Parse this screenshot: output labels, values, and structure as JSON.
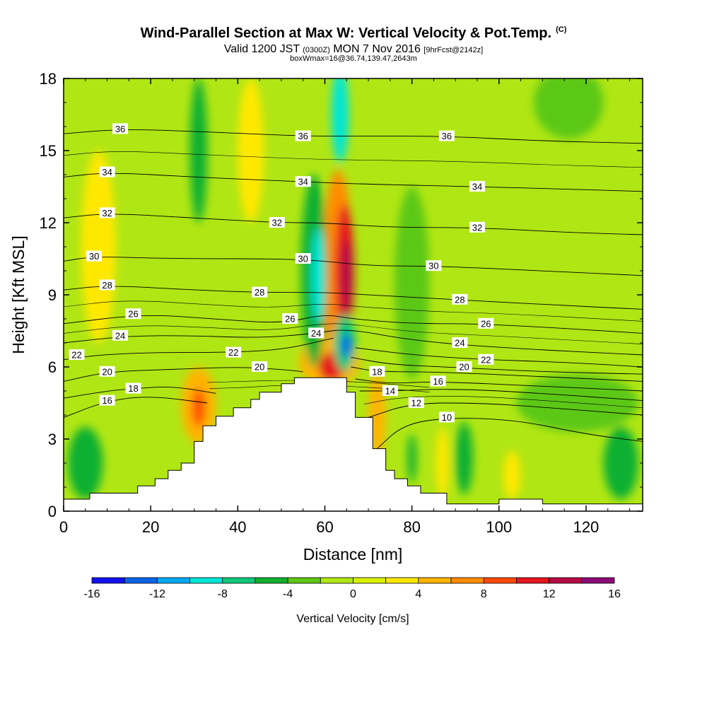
{
  "header": {
    "title": "Wind-Parallel Section at Max W: Vertical Velocity & Pot.Temp.",
    "copyright": "(C)",
    "valid_a": "Valid 1200 JST ",
    "valid_b": "(0300Z)",
    "valid_c": " MON 7 Nov 2016 ",
    "valid_d": "[9hrFcst@2142z]",
    "box": "boxWmax=16@36.74,139.47,2643m"
  },
  "chart_data": {
    "type": "heatmap",
    "xlabel": "Distance [nm]",
    "ylabel": "Height [Kft MSL]",
    "xlim": [
      0,
      133
    ],
    "ylim": [
      0,
      18
    ],
    "x_ticks": [
      0,
      20,
      40,
      60,
      80,
      100,
      120
    ],
    "y_ticks": [
      0,
      3,
      6,
      9,
      12,
      15,
      18
    ],
    "colorbar": {
      "label": "Vertical Velocity [cm/s]",
      "ticks": [
        -16,
        -12,
        -8,
        -4,
        0,
        4,
        8,
        12,
        16
      ],
      "levels": [
        -16,
        -14,
        -12,
        -10,
        -8,
        -6,
        -4,
        -2,
        0,
        2,
        4,
        6,
        8,
        10,
        12,
        14,
        16
      ],
      "colors": [
        "#1010f0",
        "#0a64e6",
        "#00a8f0",
        "#00e6d6",
        "#10c87a",
        "#10b030",
        "#5cc814",
        "#b0e614",
        "#d8f000",
        "#ffe800",
        "#ffb400",
        "#ff8c00",
        "#ff4a00",
        "#e6141e",
        "#b40a46",
        "#8c0a78"
      ]
    },
    "background_color": "#b0e614",
    "terrain": [
      [
        0,
        0.5
      ],
      [
        6,
        0.5
      ],
      [
        6,
        0.75
      ],
      [
        17,
        0.75
      ],
      [
        17,
        1.05
      ],
      [
        21,
        1.05
      ],
      [
        21,
        1.35
      ],
      [
        24,
        1.35
      ],
      [
        24,
        1.7
      ],
      [
        27,
        1.7
      ],
      [
        27,
        2.0
      ],
      [
        30,
        2.0
      ],
      [
        30,
        2.9
      ],
      [
        32,
        2.9
      ],
      [
        32,
        3.55
      ],
      [
        35,
        3.55
      ],
      [
        35,
        3.95
      ],
      [
        39,
        3.95
      ],
      [
        39,
        4.3
      ],
      [
        43,
        4.3
      ],
      [
        43,
        4.65
      ],
      [
        45,
        4.65
      ],
      [
        45,
        4.95
      ],
      [
        50,
        4.95
      ],
      [
        50,
        5.3
      ],
      [
        53,
        5.3
      ],
      [
        53,
        5.55
      ],
      [
        65,
        5.55
      ],
      [
        65,
        4.95
      ],
      [
        67,
        4.95
      ],
      [
        67,
        3.9
      ],
      [
        71,
        3.9
      ],
      [
        71,
        2.6
      ],
      [
        74,
        2.6
      ],
      [
        74,
        1.7
      ],
      [
        76,
        1.7
      ],
      [
        76,
        1.35
      ],
      [
        79,
        1.35
      ],
      [
        79,
        1.05
      ],
      [
        82,
        1.05
      ],
      [
        82,
        0.75
      ],
      [
        88,
        0.75
      ],
      [
        88,
        0.3
      ],
      [
        100,
        0.3
      ],
      [
        100,
        0.5
      ],
      [
        110,
        0.5
      ],
      [
        110,
        0.3
      ],
      [
        133,
        0.3
      ]
    ],
    "anomalies": [
      {
        "x": 63,
        "y": 10,
        "rx": 3.5,
        "ry": 4.2,
        "value": 6
      },
      {
        "x": 64.5,
        "y": 10,
        "rx": 2.2,
        "ry": 2.8,
        "value": 10
      },
      {
        "x": 65,
        "y": 9.7,
        "rx": 1.3,
        "ry": 1.6,
        "value": 13
      },
      {
        "x": 61,
        "y": 6.2,
        "rx": 7,
        "ry": 1.0,
        "value": 5
      },
      {
        "x": 61.5,
        "y": 6.0,
        "rx": 3,
        "ry": 0.6,
        "value": 11
      },
      {
        "x": 57.5,
        "y": 10,
        "rx": 3,
        "ry": 4,
        "value": -6
      },
      {
        "x": 58.5,
        "y": 9.8,
        "rx": 1.5,
        "ry": 2,
        "value": -9
      },
      {
        "x": 64.5,
        "y": 7.0,
        "rx": 2.5,
        "ry": 1.2,
        "value": -8
      },
      {
        "x": 65,
        "y": 6.9,
        "rx": 1.2,
        "ry": 0.5,
        "value": -14
      },
      {
        "x": 63.5,
        "y": 16.5,
        "rx": 2,
        "ry": 2,
        "value": -9
      },
      {
        "x": 31,
        "y": 4.4,
        "rx": 4,
        "ry": 1.6,
        "value": 5
      },
      {
        "x": 31,
        "y": 4.3,
        "rx": 1.5,
        "ry": 0.8,
        "value": 9
      },
      {
        "x": 72,
        "y": 4.0,
        "rx": 2,
        "ry": 1.8,
        "value": 5
      },
      {
        "x": 43,
        "y": 15,
        "rx": 3,
        "ry": 3,
        "value": 3
      },
      {
        "x": 31,
        "y": 15,
        "rx": 2,
        "ry": 3,
        "value": -5
      },
      {
        "x": 8,
        "y": 11,
        "rx": 4,
        "ry": 4,
        "value": 3
      },
      {
        "x": 87,
        "y": 2.0,
        "rx": 1.5,
        "ry": 1.5,
        "value": 3
      },
      {
        "x": 103,
        "y": 1.5,
        "rx": 2,
        "ry": 1,
        "value": 3
      },
      {
        "x": 92,
        "y": 2.2,
        "rx": 2,
        "ry": 1.5,
        "value": -5
      },
      {
        "x": 80,
        "y": 2.2,
        "rx": 1,
        "ry": 1,
        "value": -5
      },
      {
        "x": 5,
        "y": 2.0,
        "rx": 4,
        "ry": 1.5,
        "value": -5
      },
      {
        "x": 128,
        "y": 2.0,
        "rx": 4,
        "ry": 1.5,
        "value": -5
      },
      {
        "x": 118,
        "y": 4.5,
        "rx": 14,
        "ry": 1.2,
        "value": -3
      },
      {
        "x": 116,
        "y": 17,
        "rx": 8,
        "ry": 1.5,
        "value": -3
      },
      {
        "x": 80,
        "y": 9.5,
        "rx": 4,
        "ry": 4,
        "value": -3
      }
    ],
    "isentropes": [
      {
        "value": 10,
        "pts": [
          [
            72,
            2.6
          ],
          [
            78,
            3.6
          ],
          [
            88,
            3.9
          ],
          [
            104,
            3.8
          ],
          [
            120,
            3.2
          ],
          [
            133,
            2.9
          ]
        ],
        "label_at": [
          88,
          3.9
        ]
      },
      {
        "value": 12,
        "pts": [
          [
            70,
            3.9
          ],
          [
            80,
            4.5
          ],
          [
            96,
            4.5
          ],
          [
            112,
            4.3
          ],
          [
            133,
            4.0
          ]
        ],
        "label_at": [
          81,
          4.5
        ]
      },
      {
        "value": 14,
        "pts": [
          [
            68,
            5.0
          ],
          [
            75,
            5.0
          ],
          [
            90,
            5.1
          ],
          [
            110,
            4.9
          ],
          [
            133,
            4.6
          ]
        ],
        "label_at": [
          75,
          5.0
        ]
      },
      {
        "value": 16,
        "pts": [
          [
            0,
            3.9
          ],
          [
            10,
            4.6
          ],
          [
            20,
            4.8
          ],
          [
            33,
            4.5
          ]
        ],
        "label_at": [
          10,
          4.6
        ]
      },
      {
        "value": 16,
        "pts": [
          [
            67,
            5.5
          ],
          [
            75,
            5.3
          ],
          [
            85,
            5.4
          ],
          [
            110,
            5.2
          ],
          [
            133,
            5.0
          ]
        ],
        "label_at": [
          86,
          5.4
        ]
      },
      {
        "value": 18,
        "pts": [
          [
            0,
            4.7
          ],
          [
            10,
            5.0
          ],
          [
            16,
            5.1
          ],
          [
            25,
            5.2
          ],
          [
            35,
            4.9
          ]
        ],
        "label_at": [
          16,
          5.1
        ]
      },
      {
        "value": 18,
        "pts": [
          [
            66,
            6.0
          ],
          [
            72,
            5.8
          ],
          [
            85,
            5.8
          ],
          [
            110,
            5.6
          ],
          [
            133,
            5.4
          ]
        ],
        "label_at": [
          72,
          5.8
        ]
      },
      {
        "value": 20,
        "pts": [
          [
            0,
            5.4
          ],
          [
            10,
            5.8
          ],
          [
            25,
            5.9
          ],
          [
            40,
            6.0
          ],
          [
            50,
            5.9
          ],
          [
            55,
            5.8
          ]
        ],
        "label_at": [
          10,
          5.8
        ]
      },
      {
        "value": 20,
        "pts": [
          [
            66,
            6.4
          ],
          [
            75,
            6.1
          ],
          [
            88,
            6.0
          ],
          [
            110,
            5.8
          ],
          [
            133,
            5.7
          ]
        ],
        "label_at": [
          92,
          6.0
        ]
      },
      {
        "value": 22,
        "pts": [
          [
            0,
            6.3
          ],
          [
            8,
            6.5
          ],
          [
            20,
            6.6
          ],
          [
            36,
            6.6
          ],
          [
            50,
            6.7
          ],
          [
            62,
            7.2
          ]
        ],
        "label_at": [
          3,
          6.5
        ]
      },
      {
        "value": 22,
        "pts": [
          [
            67,
            6.8
          ],
          [
            80,
            6.5
          ],
          [
            97,
            6.3
          ],
          [
            115,
            6.2
          ],
          [
            133,
            6.0
          ]
        ],
        "label_at": [
          97,
          6.3
        ]
      },
      {
        "value": 24,
        "pts": [
          [
            0,
            7.0
          ],
          [
            15,
            7.3
          ],
          [
            30,
            7.3
          ],
          [
            45,
            7.2
          ],
          [
            58,
            7.4
          ],
          [
            65,
            7.6
          ],
          [
            80,
            7.1
          ],
          [
            100,
            6.8
          ],
          [
            133,
            6.5
          ]
        ],
        "label_at": [
          13,
          7.3
        ]
      },
      {
        "value": 26,
        "pts": [
          [
            0,
            7.8
          ],
          [
            18,
            8.2
          ],
          [
            35,
            8.0
          ],
          [
            50,
            7.8
          ],
          [
            60,
            8.2
          ],
          [
            66,
            8.0
          ],
          [
            80,
            7.8
          ],
          [
            97,
            7.8
          ],
          [
            133,
            7.4
          ]
        ],
        "label_at": [
          16,
          8.2
        ]
      },
      {
        "value": 28,
        "pts": [
          [
            0,
            9.2
          ],
          [
            10,
            9.4
          ],
          [
            30,
            9.2
          ],
          [
            45,
            9.1
          ],
          [
            60,
            9.1
          ],
          [
            70,
            9.0
          ],
          [
            90,
            8.8
          ],
          [
            110,
            8.6
          ],
          [
            133,
            8.4
          ]
        ],
        "label_at": [
          10,
          9.4
        ]
      },
      {
        "value": 30,
        "pts": [
          [
            0,
            10.4
          ],
          [
            7,
            10.6
          ],
          [
            25,
            10.5
          ],
          [
            55,
            10.5
          ],
          [
            70,
            10.2
          ],
          [
            85,
            10.2
          ],
          [
            110,
            10.0
          ],
          [
            133,
            9.8
          ]
        ],
        "label_at": [
          7,
          10.6
        ]
      },
      {
        "value": 32,
        "pts": [
          [
            0,
            12.2
          ],
          [
            10,
            12.4
          ],
          [
            30,
            12.2
          ],
          [
            49,
            12.0
          ],
          [
            60,
            12.0
          ],
          [
            75,
            11.8
          ],
          [
            95,
            11.8
          ],
          [
            115,
            11.6
          ],
          [
            133,
            11.5
          ]
        ],
        "label_at": [
          10,
          12.4
        ]
      },
      {
        "value": 34,
        "pts": [
          [
            0,
            13.9
          ],
          [
            10,
            14.1
          ],
          [
            30,
            13.9
          ],
          [
            55,
            13.7
          ],
          [
            70,
            13.6
          ],
          [
            95,
            13.5
          ],
          [
            115,
            13.4
          ],
          [
            133,
            13.3
          ]
        ],
        "label_at": [
          10,
          14.1
        ]
      },
      {
        "value": 36,
        "pts": [
          [
            0,
            15.7
          ],
          [
            13,
            15.9
          ],
          [
            30,
            15.8
          ],
          [
            55,
            15.6
          ],
          [
            70,
            15.6
          ],
          [
            88,
            15.6
          ],
          [
            110,
            15.4
          ],
          [
            133,
            15.3
          ]
        ],
        "label_at": [
          13,
          15.9
        ]
      }
    ],
    "extra_labels": [
      {
        "value": 36,
        "at": [
          55,
          15.6
        ]
      },
      {
        "value": 36,
        "at": [
          88,
          15.6
        ]
      },
      {
        "value": 34,
        "at": [
          55,
          13.7
        ]
      },
      {
        "value": 34,
        "at": [
          95,
          13.5
        ]
      },
      {
        "value": 32,
        "at": [
          49,
          12.0
        ]
      },
      {
        "value": 32,
        "at": [
          95,
          11.8
        ]
      },
      {
        "value": 30,
        "at": [
          55,
          10.5
        ]
      },
      {
        "value": 30,
        "at": [
          85,
          10.2
        ]
      },
      {
        "value": 28,
        "at": [
          45,
          9.1
        ]
      },
      {
        "value": 28,
        "at": [
          91,
          8.8
        ]
      },
      {
        "value": 26,
        "at": [
          52,
          8.0
        ]
      },
      {
        "value": 26,
        "at": [
          97,
          7.8
        ]
      },
      {
        "value": 24,
        "at": [
          58,
          7.4
        ]
      },
      {
        "value": 24,
        "at": [
          91,
          7.0
        ]
      },
      {
        "value": 22,
        "at": [
          39,
          6.6
        ]
      },
      {
        "value": 20,
        "at": [
          45,
          6.0
        ]
      }
    ]
  }
}
